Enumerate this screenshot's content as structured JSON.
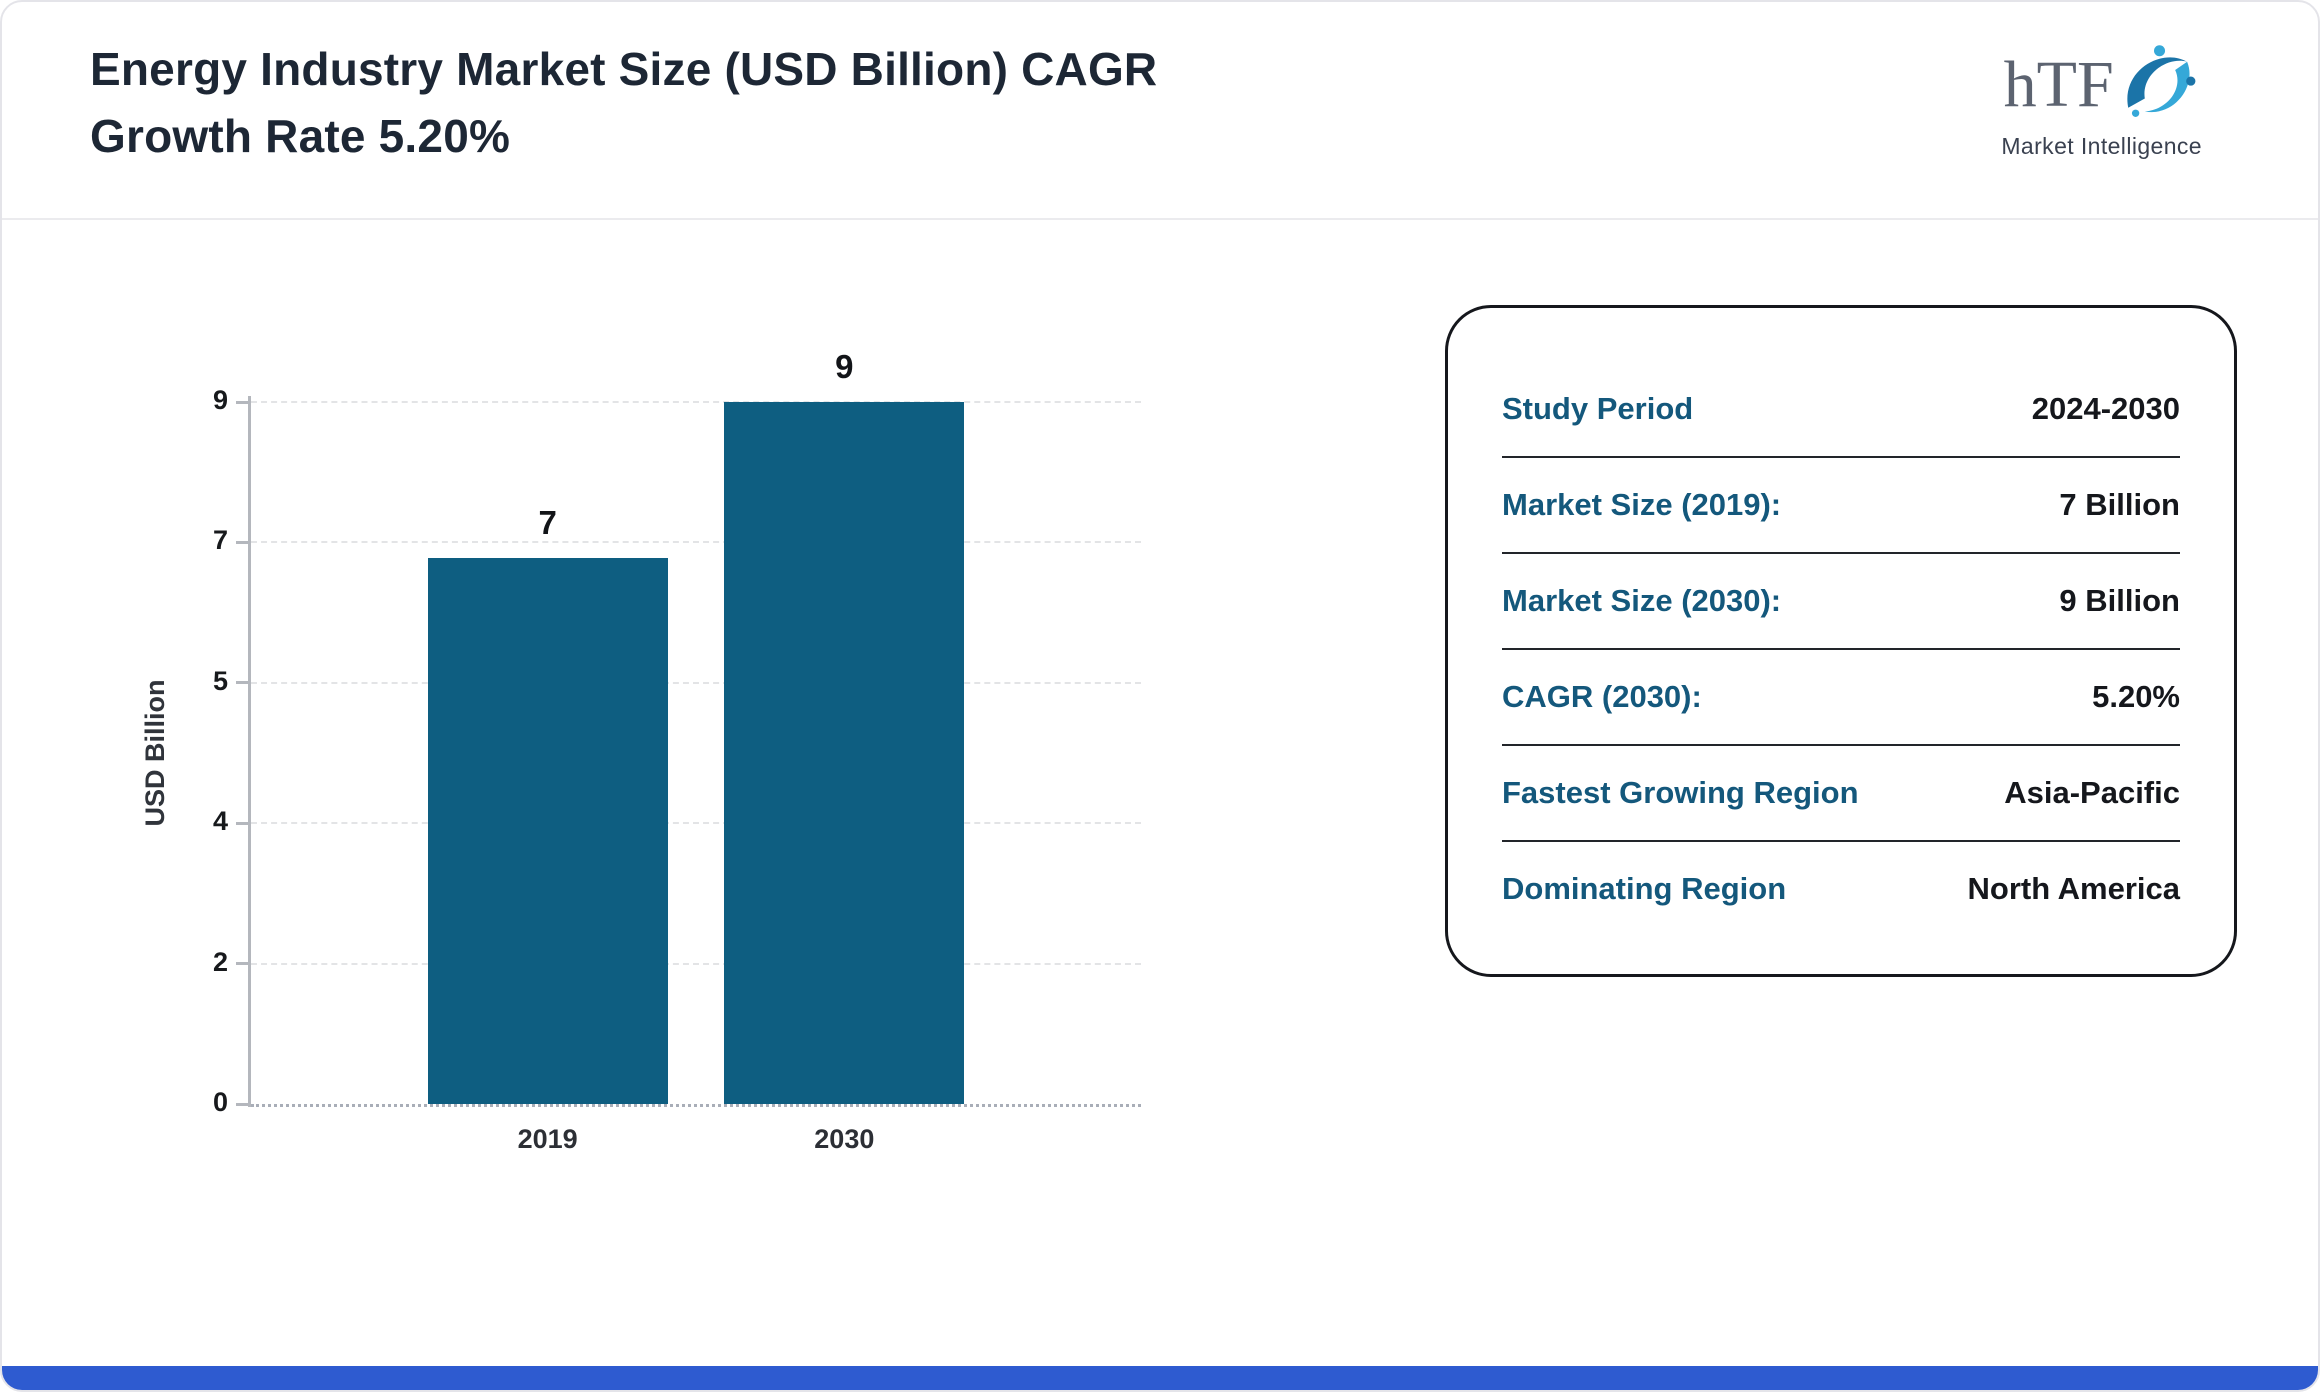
{
  "page": {
    "title": "Energy Industry Market Size (USD Billion) CAGR\nGrowth Rate 5.20%"
  },
  "logo": {
    "text": "hTF",
    "subtext": "Market Intelligence"
  },
  "chart_data": {
    "type": "bar",
    "title": "Energy Industry Market Size (USD Billion) CAGR Growth Rate 5.20%",
    "categories": [
      "2019",
      "2030"
    ],
    "values": [
      7,
      9
    ],
    "xlabel": "",
    "ylabel": "USD Billion",
    "yticks": [
      0,
      2,
      4,
      5,
      7,
      9
    ],
    "ylim": [
      0,
      9
    ],
    "grid": "horizontal-dashed",
    "legend": "none",
    "bar_color": "#0e5e81"
  },
  "info_card": {
    "rows": [
      {
        "label": "Study Period",
        "value": "2024-2030"
      },
      {
        "label": "Market Size (2019):",
        "value": "7 Billion"
      },
      {
        "label": "Market Size (2030):",
        "value": "9 Billion"
      },
      {
        "label": "CAGR (2030):",
        "value": "5.20%"
      },
      {
        "label": "Fastest Growing Region",
        "value": "Asia-Pacific"
      },
      {
        "label": "Dominating Region",
        "value": "North America"
      }
    ]
  },
  "colors": {
    "bar": "#0e5e81",
    "label_teal": "#14587c",
    "accent_bottom_bar": "#2e5bd0",
    "title_text": "#1d2735",
    "logo_blue_light": "#35a8d8",
    "logo_blue_dark": "#1b74a8"
  }
}
